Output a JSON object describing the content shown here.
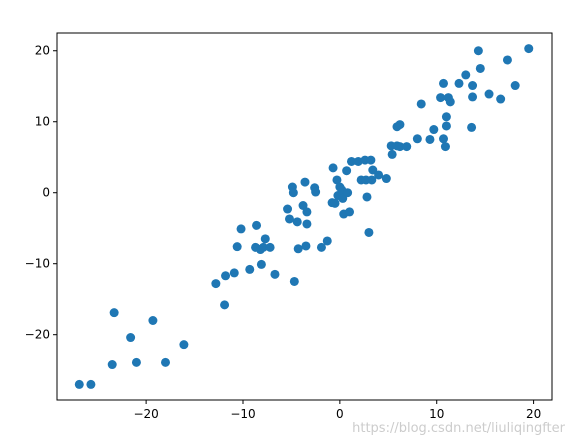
{
  "chart_data": {
    "type": "scatter",
    "color": "#1f77b4",
    "watermark": "https://blog.csdn.net/liuliqingfter",
    "xlim": [
      -29.2,
      21.9
    ],
    "ylim": [
      -29.2,
      22.5
    ],
    "xticks": [
      {
        "value": -20,
        "label": "−20"
      },
      {
        "value": -10,
        "label": "−10"
      },
      0,
      10,
      20
    ],
    "yticks": [
      {
        "value": -20,
        "label": "−20"
      },
      {
        "value": -10,
        "label": "−10"
      },
      0,
      10,
      20
    ],
    "x": [
      -26.9,
      -25.7,
      -23.5,
      -23.3,
      -21.6,
      -21.0,
      -19.3,
      -18.0,
      -16.1,
      -12.8,
      -11.9,
      -11.8,
      -10.9,
      -10.6,
      -10.2,
      -9.3,
      -8.7,
      -8.6,
      -8.2,
      -8.1,
      -7.9,
      -7.7,
      -7.2,
      -6.7,
      -5.4,
      -5.2,
      -4.9,
      -4.8,
      -4.7,
      -4.4,
      -4.3,
      -3.8,
      -3.6,
      -3.5,
      -3.4,
      -3.4,
      -2.6,
      -2.5,
      -1.9,
      -1.3,
      -0.7,
      -0.8,
      -0.5,
      -0.3,
      -0.2,
      0,
      0.2,
      0.3,
      0.4,
      0.8,
      1.0,
      0.7,
      1.2,
      1.9,
      2.2,
      2.6,
      2.7,
      2.8,
      3.0,
      3.2,
      3.3,
      3.4,
      4.0,
      4.8,
      5.3,
      5.4,
      5.9,
      5.9,
      6.2,
      6.2,
      6.9,
      8.0,
      8.4,
      9.3,
      9.7,
      10.4,
      10.7,
      10.7,
      10.9,
      11.0,
      11.0,
      11.2,
      11.4,
      12.3,
      13.0,
      13.6,
      13.7,
      13.7,
      14.3,
      14.5,
      15.4,
      16.6,
      17.3,
      18.1,
      19.5
    ],
    "values": [
      -27.0,
      -27.0,
      -24.2,
      -16.9,
      -20.4,
      -23.9,
      -18.0,
      -23.9,
      -21.4,
      -12.8,
      -15.8,
      -11.7,
      -11.3,
      -7.6,
      -5.1,
      -10.8,
      -7.7,
      -4.6,
      -8.0,
      -10.1,
      -7.7,
      -6.5,
      -7.7,
      -11.5,
      -2.3,
      -3.7,
      0.8,
      0.0,
      -12.5,
      -4.1,
      -7.9,
      -1.8,
      1.5,
      -7.5,
      -2.7,
      -4.4,
      0.7,
      0.1,
      -7.7,
      -6.8,
      3.5,
      -1.4,
      -1.5,
      1.8,
      -0.4,
      0.8,
      0.4,
      -0.8,
      -3.0,
      0,
      -2.7,
      3.1,
      4.4,
      4.4,
      1.8,
      4.6,
      1.8,
      -0.6,
      -5.6,
      4.6,
      1.8,
      3.2,
      2.5,
      2.0,
      6.6,
      5.4,
      6.6,
      9.3,
      9.6,
      6.5,
      6.5,
      7.6,
      12.5,
      7.5,
      8.9,
      13.4,
      15.4,
      7.6,
      6.5,
      9.4,
      10.7,
      13.4,
      12.8,
      15.4,
      16.6,
      9.2,
      15.1,
      13.5,
      20.0,
      17.5,
      13.9,
      13.2,
      18.7,
      15.1,
      20.3
    ]
  }
}
